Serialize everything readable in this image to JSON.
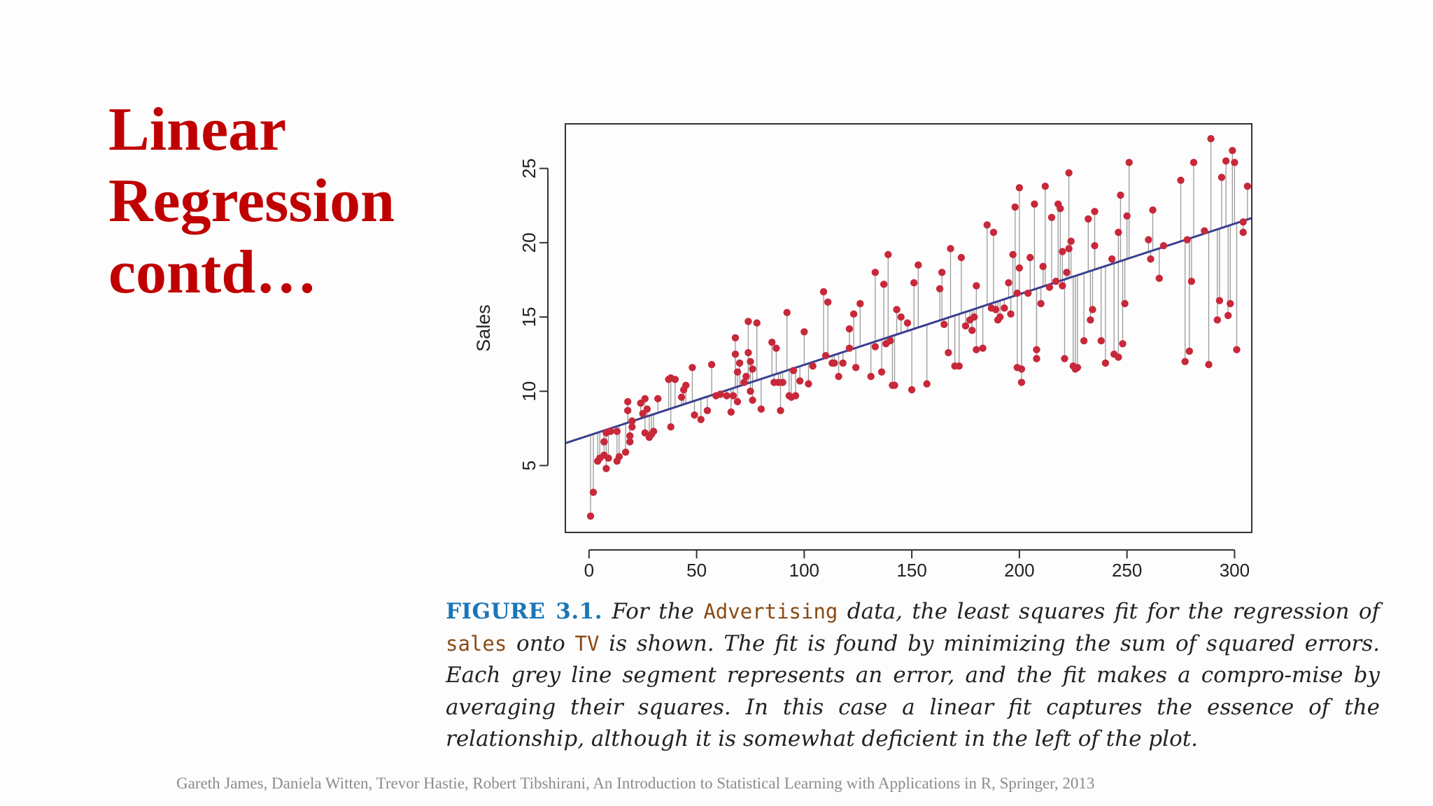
{
  "slide": {
    "title_lines": [
      "Linear",
      "Regression",
      "contd…"
    ]
  },
  "chart_data": {
    "type": "scatter",
    "ylabel": "Sales",
    "xlabel": "",
    "xlim": [
      -11,
      308
    ],
    "ylim": [
      0.5,
      28
    ],
    "x_ticks": [
      0,
      50,
      100,
      150,
      200,
      250,
      300
    ],
    "y_ticks": [
      5,
      10,
      15,
      20,
      25
    ],
    "fit_line": {
      "intercept": 7.03,
      "slope": 0.0475,
      "color": "#3b3f8f"
    },
    "point_color": "#c8283a",
    "residual_color": "#9a9a9a",
    "points": [
      [
        0.7,
        1.6
      ],
      [
        2,
        3.2
      ],
      [
        4,
        5.3
      ],
      [
        5,
        5.5
      ],
      [
        7,
        5.7
      ],
      [
        7,
        6.6
      ],
      [
        8,
        7.2
      ],
      [
        8,
        4.8
      ],
      [
        9,
        5.5
      ],
      [
        10,
        7.3
      ],
      [
        13,
        7.3
      ],
      [
        13,
        5.3
      ],
      [
        14,
        5.6
      ],
      [
        17,
        5.9
      ],
      [
        18,
        8.7
      ],
      [
        18,
        9.3
      ],
      [
        19,
        6.6
      ],
      [
        19,
        7.0
      ],
      [
        20,
        7.6
      ],
      [
        20,
        8.0
      ],
      [
        24,
        9.2
      ],
      [
        25,
        8.5
      ],
      [
        26,
        9.5
      ],
      [
        26,
        7.2
      ],
      [
        27,
        8.8
      ],
      [
        28,
        6.9
      ],
      [
        29,
        7.1
      ],
      [
        30,
        7.3
      ],
      [
        32,
        9.5
      ],
      [
        37,
        10.8
      ],
      [
        38,
        10.9
      ],
      [
        38,
        7.6
      ],
      [
        40,
        10.8
      ],
      [
        43,
        9.6
      ],
      [
        44,
        10.1
      ],
      [
        45,
        10.4
      ],
      [
        48,
        11.6
      ],
      [
        49,
        8.4
      ],
      [
        52,
        8.1
      ],
      [
        55,
        8.7
      ],
      [
        57,
        11.8
      ],
      [
        59,
        9.7
      ],
      [
        61,
        9.8
      ],
      [
        64,
        9.7
      ],
      [
        66,
        8.6
      ],
      [
        67,
        9.7
      ],
      [
        68,
        12.5
      ],
      [
        68,
        13.6
      ],
      [
        69,
        11.3
      ],
      [
        69,
        9.3
      ],
      [
        70,
        11.9
      ],
      [
        72,
        10.6
      ],
      [
        73,
        11.0
      ],
      [
        74,
        12.6
      ],
      [
        74,
        14.7
      ],
      [
        75,
        10.0
      ],
      [
        75,
        12.0
      ],
      [
        76,
        11.5
      ],
      [
        76,
        9.4
      ],
      [
        78,
        14.6
      ],
      [
        80,
        8.8
      ],
      [
        85,
        13.3
      ],
      [
        86,
        10.6
      ],
      [
        87,
        12.9
      ],
      [
        88,
        10.6
      ],
      [
        89,
        8.7
      ],
      [
        90,
        10.6
      ],
      [
        92,
        15.3
      ],
      [
        93,
        9.7
      ],
      [
        94,
        9.6
      ],
      [
        95,
        11.4
      ],
      [
        96,
        9.7
      ],
      [
        98,
        10.7
      ],
      [
        100,
        14.0
      ],
      [
        102,
        10.5
      ],
      [
        104,
        11.7
      ],
      [
        109,
        16.7
      ],
      [
        110,
        12.4
      ],
      [
        111,
        16.0
      ],
      [
        113,
        11.9
      ],
      [
        114,
        11.9
      ],
      [
        116,
        11.0
      ],
      [
        118,
        11.9
      ],
      [
        121,
        14.2
      ],
      [
        121,
        12.9
      ],
      [
        123,
        15.2
      ],
      [
        124,
        11.6
      ],
      [
        126,
        15.9
      ],
      [
        131,
        11.0
      ],
      [
        133,
        18.0
      ],
      [
        133,
        13.0
      ],
      [
        136,
        11.3
      ],
      [
        137,
        17.2
      ],
      [
        138,
        13.2
      ],
      [
        139,
        19.2
      ],
      [
        140,
        13.4
      ],
      [
        141,
        10.4
      ],
      [
        142,
        10.4
      ],
      [
        143,
        15.5
      ],
      [
        145,
        15.0
      ],
      [
        148,
        14.6
      ],
      [
        150,
        10.1
      ],
      [
        151,
        17.3
      ],
      [
        153,
        18.5
      ],
      [
        157,
        10.5
      ],
      [
        163,
        16.9
      ],
      [
        164,
        18.0
      ],
      [
        165,
        14.5
      ],
      [
        167,
        12.6
      ],
      [
        168,
        19.6
      ],
      [
        170,
        11.7
      ],
      [
        172,
        11.7
      ],
      [
        173,
        19.0
      ],
      [
        175,
        14.4
      ],
      [
        177,
        14.8
      ],
      [
        178,
        14.1
      ],
      [
        179,
        15.0
      ],
      [
        180,
        17.1
      ],
      [
        180,
        12.8
      ],
      [
        183,
        12.9
      ],
      [
        185,
        21.2
      ],
      [
        187,
        15.6
      ],
      [
        188,
        20.7
      ],
      [
        189,
        15.5
      ],
      [
        190,
        14.8
      ],
      [
        191,
        15.0
      ],
      [
        193,
        15.6
      ],
      [
        195,
        17.3
      ],
      [
        196,
        15.2
      ],
      [
        197,
        19.2
      ],
      [
        198,
        22.4
      ],
      [
        199,
        16.6
      ],
      [
        199,
        11.6
      ],
      [
        200,
        23.7
      ],
      [
        200,
        18.3
      ],
      [
        201,
        11.5
      ],
      [
        201,
        10.6
      ],
      [
        204,
        16.6
      ],
      [
        205,
        19.0
      ],
      [
        207,
        22.6
      ],
      [
        208,
        12.2
      ],
      [
        208,
        12.8
      ],
      [
        210,
        15.9
      ],
      [
        211,
        18.4
      ],
      [
        212,
        23.8
      ],
      [
        214,
        17.0
      ],
      [
        215,
        21.7
      ],
      [
        217,
        17.4
      ],
      [
        218,
        22.6
      ],
      [
        219,
        22.3
      ],
      [
        220,
        17.1
      ],
      [
        220,
        19.4
      ],
      [
        221,
        12.2
      ],
      [
        222,
        18.0
      ],
      [
        223,
        19.6
      ],
      [
        223,
        24.7
      ],
      [
        224,
        20.1
      ],
      [
        225,
        11.7
      ],
      [
        226,
        11.5
      ],
      [
        227,
        11.6
      ],
      [
        230,
        13.4
      ],
      [
        232,
        21.6
      ],
      [
        233,
        14.8
      ],
      [
        234,
        15.5
      ],
      [
        235,
        22.1
      ],
      [
        235,
        19.8
      ],
      [
        238,
        13.4
      ],
      [
        240,
        11.9
      ],
      [
        243,
        18.9
      ],
      [
        244,
        12.5
      ],
      [
        246,
        20.7
      ],
      [
        246,
        12.3
      ],
      [
        247,
        23.2
      ],
      [
        248,
        13.2
      ],
      [
        249,
        15.9
      ],
      [
        250,
        21.8
      ],
      [
        251,
        25.4
      ],
      [
        260,
        20.2
      ],
      [
        261,
        18.9
      ],
      [
        262,
        22.2
      ],
      [
        265,
        17.6
      ],
      [
        267,
        19.8
      ],
      [
        275,
        24.2
      ],
      [
        277,
        12.0
      ],
      [
        278,
        20.2
      ],
      [
        279,
        12.7
      ],
      [
        280,
        17.4
      ],
      [
        281,
        25.4
      ],
      [
        286,
        20.8
      ],
      [
        288,
        11.8
      ],
      [
        289,
        27.0
      ],
      [
        292,
        14.8
      ],
      [
        293,
        16.1
      ],
      [
        294,
        24.4
      ],
      [
        296,
        25.5
      ],
      [
        297,
        15.1
      ],
      [
        298,
        15.9
      ],
      [
        299,
        26.2
      ],
      [
        300,
        25.4
      ],
      [
        301,
        12.8
      ],
      [
        304,
        21.4
      ],
      [
        304,
        20.7
      ],
      [
        306,
        23.8
      ]
    ]
  },
  "caption": {
    "figure_label": "FIGURE 3.1.",
    "t1": " For the ",
    "code1": "Advertising",
    "t2": " data, the least squares fit for the regression of ",
    "code2": "sales",
    "t3": " onto ",
    "code3": "TV",
    "t4": " is shown. The fit is found by minimizing the sum of squared errors. Each grey line segment represents an error, and the fit makes a compro-mise by averaging their squares. In this case a linear fit captures the essence of the relationship, although it is somewhat deficient in the left of the plot."
  },
  "citation": "Gareth James, Daniela Witten, Trevor Hastie, Robert Tibshirani, An Introduction to Statistical Learning with Applications in R, Springer, 2013"
}
